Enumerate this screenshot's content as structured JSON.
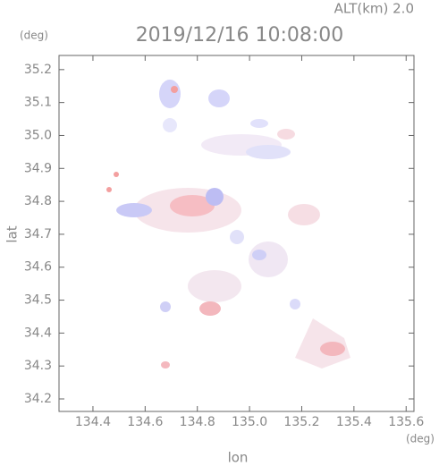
{
  "chart_data": {
    "type": "map",
    "altitude_label": "ALT(km) 2.0",
    "title": "2019/12/16 10:08:00",
    "xlabel": "lon",
    "ylabel": "lat",
    "x_unit": "(deg)",
    "y_unit": "(deg)",
    "xlim": [
      134.27,
      135.63
    ],
    "ylim": [
      34.162,
      35.243
    ],
    "xticks": [
      134.4,
      134.6,
      134.8,
      {
        "value": 135.0,
        "label": "135.0"
      },
      135.2,
      135.4,
      135.6
    ],
    "yticks": [
      34.2,
      34.3,
      34.4,
      34.5,
      34.6,
      34.7,
      34.8,
      34.9,
      {
        "value": 35.0,
        "label": "35.0"
      },
      35.1,
      35.2
    ]
  }
}
